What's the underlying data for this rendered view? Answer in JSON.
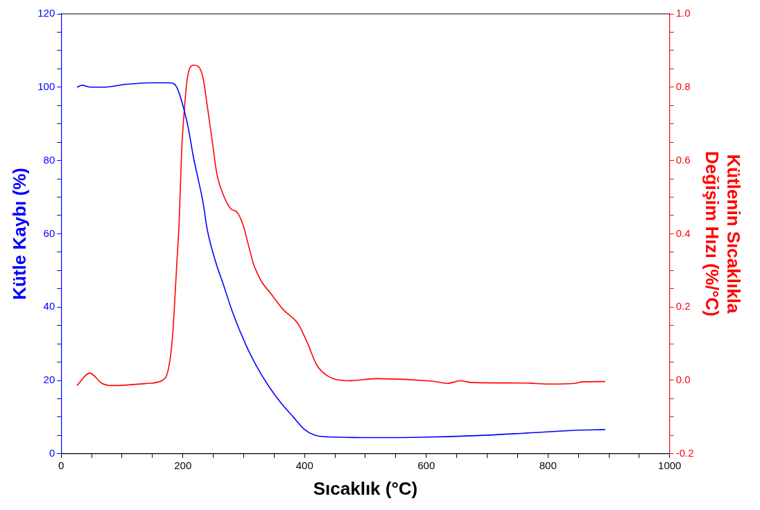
{
  "chart_data": {
    "type": "line",
    "xlabel": "Sıcaklık (°C)",
    "ylabel": "Kütle Kaybı (%)",
    "y2label": "Kütlenin Sıcaklıkla\nDeğişim Hızı (%/°C)",
    "xlim": [
      0,
      1000
    ],
    "xticks": [
      0,
      {
        "value": 50,
        "label": null
      },
      {
        "value": 100,
        "label": null
      },
      {
        "value": 150,
        "label": null
      },
      200,
      {
        "value": 250,
        "label": null
      },
      {
        "value": 300,
        "label": null
      },
      {
        "value": 350,
        "label": null
      },
      400,
      {
        "value": 450,
        "label": null
      },
      {
        "value": 500,
        "label": null
      },
      {
        "value": 550,
        "label": null
      },
      600,
      {
        "value": 650,
        "label": null
      },
      {
        "value": 700,
        "label": null
      },
      {
        "value": 750,
        "label": null
      },
      800,
      {
        "value": 850,
        "label": null
      },
      {
        "value": 900,
        "label": null
      },
      {
        "value": 950,
        "label": null
      },
      1000
    ],
    "ylim": [
      0,
      120
    ],
    "yticks": [
      0,
      {
        "value": 5,
        "label": null
      },
      {
        "value": 10,
        "label": null
      },
      {
        "value": 15,
        "label": null
      },
      20,
      {
        "value": 25,
        "label": null
      },
      {
        "value": 30,
        "label": null
      },
      {
        "value": 35,
        "label": null
      },
      40,
      {
        "value": 45,
        "label": null
      },
      {
        "value": 50,
        "label": null
      },
      {
        "value": 55,
        "label": null
      },
      60,
      {
        "value": 65,
        "label": null
      },
      {
        "value": 70,
        "label": null
      },
      {
        "value": 75,
        "label": null
      },
      80,
      {
        "value": 85,
        "label": null
      },
      {
        "value": 90,
        "label": null
      },
      {
        "value": 95,
        "label": null
      },
      100,
      {
        "value": 105,
        "label": null
      },
      {
        "value": 110,
        "label": null
      },
      {
        "value": 115,
        "label": null
      },
      120
    ],
    "y2lim": [
      -0.2,
      1.0
    ],
    "y2ticks": [
      {
        "value": -0.2,
        "label": "-0.2"
      },
      {
        "value": -0.15,
        "label": null
      },
      {
        "value": -0.1,
        "label": null
      },
      {
        "value": -0.05,
        "label": null
      },
      {
        "value": 0,
        "label": "0.0"
      },
      {
        "value": 0.05,
        "label": null
      },
      {
        "value": 0.1,
        "label": null
      },
      {
        "value": 0.15,
        "label": null
      },
      0.2,
      {
        "value": 0.25,
        "label": null
      },
      {
        "value": 0.3,
        "label": null
      },
      {
        "value": 0.35,
        "label": null
      },
      0.4,
      {
        "value": 0.45,
        "label": null
      },
      {
        "value": 0.5,
        "label": null
      },
      {
        "value": 0.55,
        "label": null
      },
      0.6,
      {
        "value": 0.65,
        "label": null
      },
      {
        "value": 0.7,
        "label": null
      },
      {
        "value": 0.75,
        "label": null
      },
      0.8,
      {
        "value": 0.85,
        "label": null
      },
      {
        "value": 0.9,
        "label": null
      },
      {
        "value": 0.95,
        "label": null
      },
      {
        "value": 1.0,
        "label": "1.0"
      }
    ],
    "grid": false,
    "legend": false,
    "marker": "none",
    "line_style": "solid",
    "series": [
      {
        "color": "#0000ff",
        "x": [
          26,
          34,
          49,
          69,
          108,
          146,
          178,
          187,
          193,
          201,
          209,
          217,
          225,
          233,
          240,
          256,
          264,
          283,
          303,
          322,
          342,
          361,
          381,
          400,
          416,
          439,
          518,
          593,
          676,
          760,
          844,
          894
        ],
        "values": [
          100.0,
          100.5,
          100.0,
          100.0,
          100.8,
          101.2,
          101.2,
          100.7,
          98.8,
          94.4,
          88.8,
          81.2,
          75.0,
          68.7,
          61.2,
          51.2,
          47.4,
          38.0,
          29.9,
          23.6,
          18.2,
          13.9,
          10.1,
          6.6,
          5.1,
          4.6,
          4.4,
          4.5,
          4.9,
          5.6,
          6.4,
          6.6
        ]
      },
      {
        "color": "#ff0000",
        "axis": "y2",
        "x": [
          26,
          47,
          67,
          84,
          143,
          166,
          176,
          183,
          190,
          194,
          198,
          203,
          207,
          217,
          225,
          233,
          240,
          248,
          256,
          268,
          279,
          289,
          299,
          307,
          316,
          330,
          345,
          365,
          389,
          404,
          420,
          439,
          471,
          518,
          609,
          635,
          656,
          676,
          760,
          802,
          844,
          856,
          894
        ],
        "values": [
          -0.014,
          0.02,
          -0.008,
          -0.014,
          -0.008,
          0.0,
          0.03,
          0.12,
          0.318,
          0.437,
          0.626,
          0.75,
          0.821,
          0.86,
          0.857,
          0.826,
          0.75,
          0.656,
          0.562,
          0.5,
          0.468,
          0.459,
          0.424,
          0.374,
          0.318,
          0.268,
          0.236,
          0.193,
          0.155,
          0.105,
          0.042,
          0.011,
          -0.001,
          0.005,
          -0.002,
          -0.008,
          -0.001,
          -0.006,
          -0.007,
          -0.01,
          -0.008,
          -0.004,
          -0.003
        ]
      }
    ]
  }
}
